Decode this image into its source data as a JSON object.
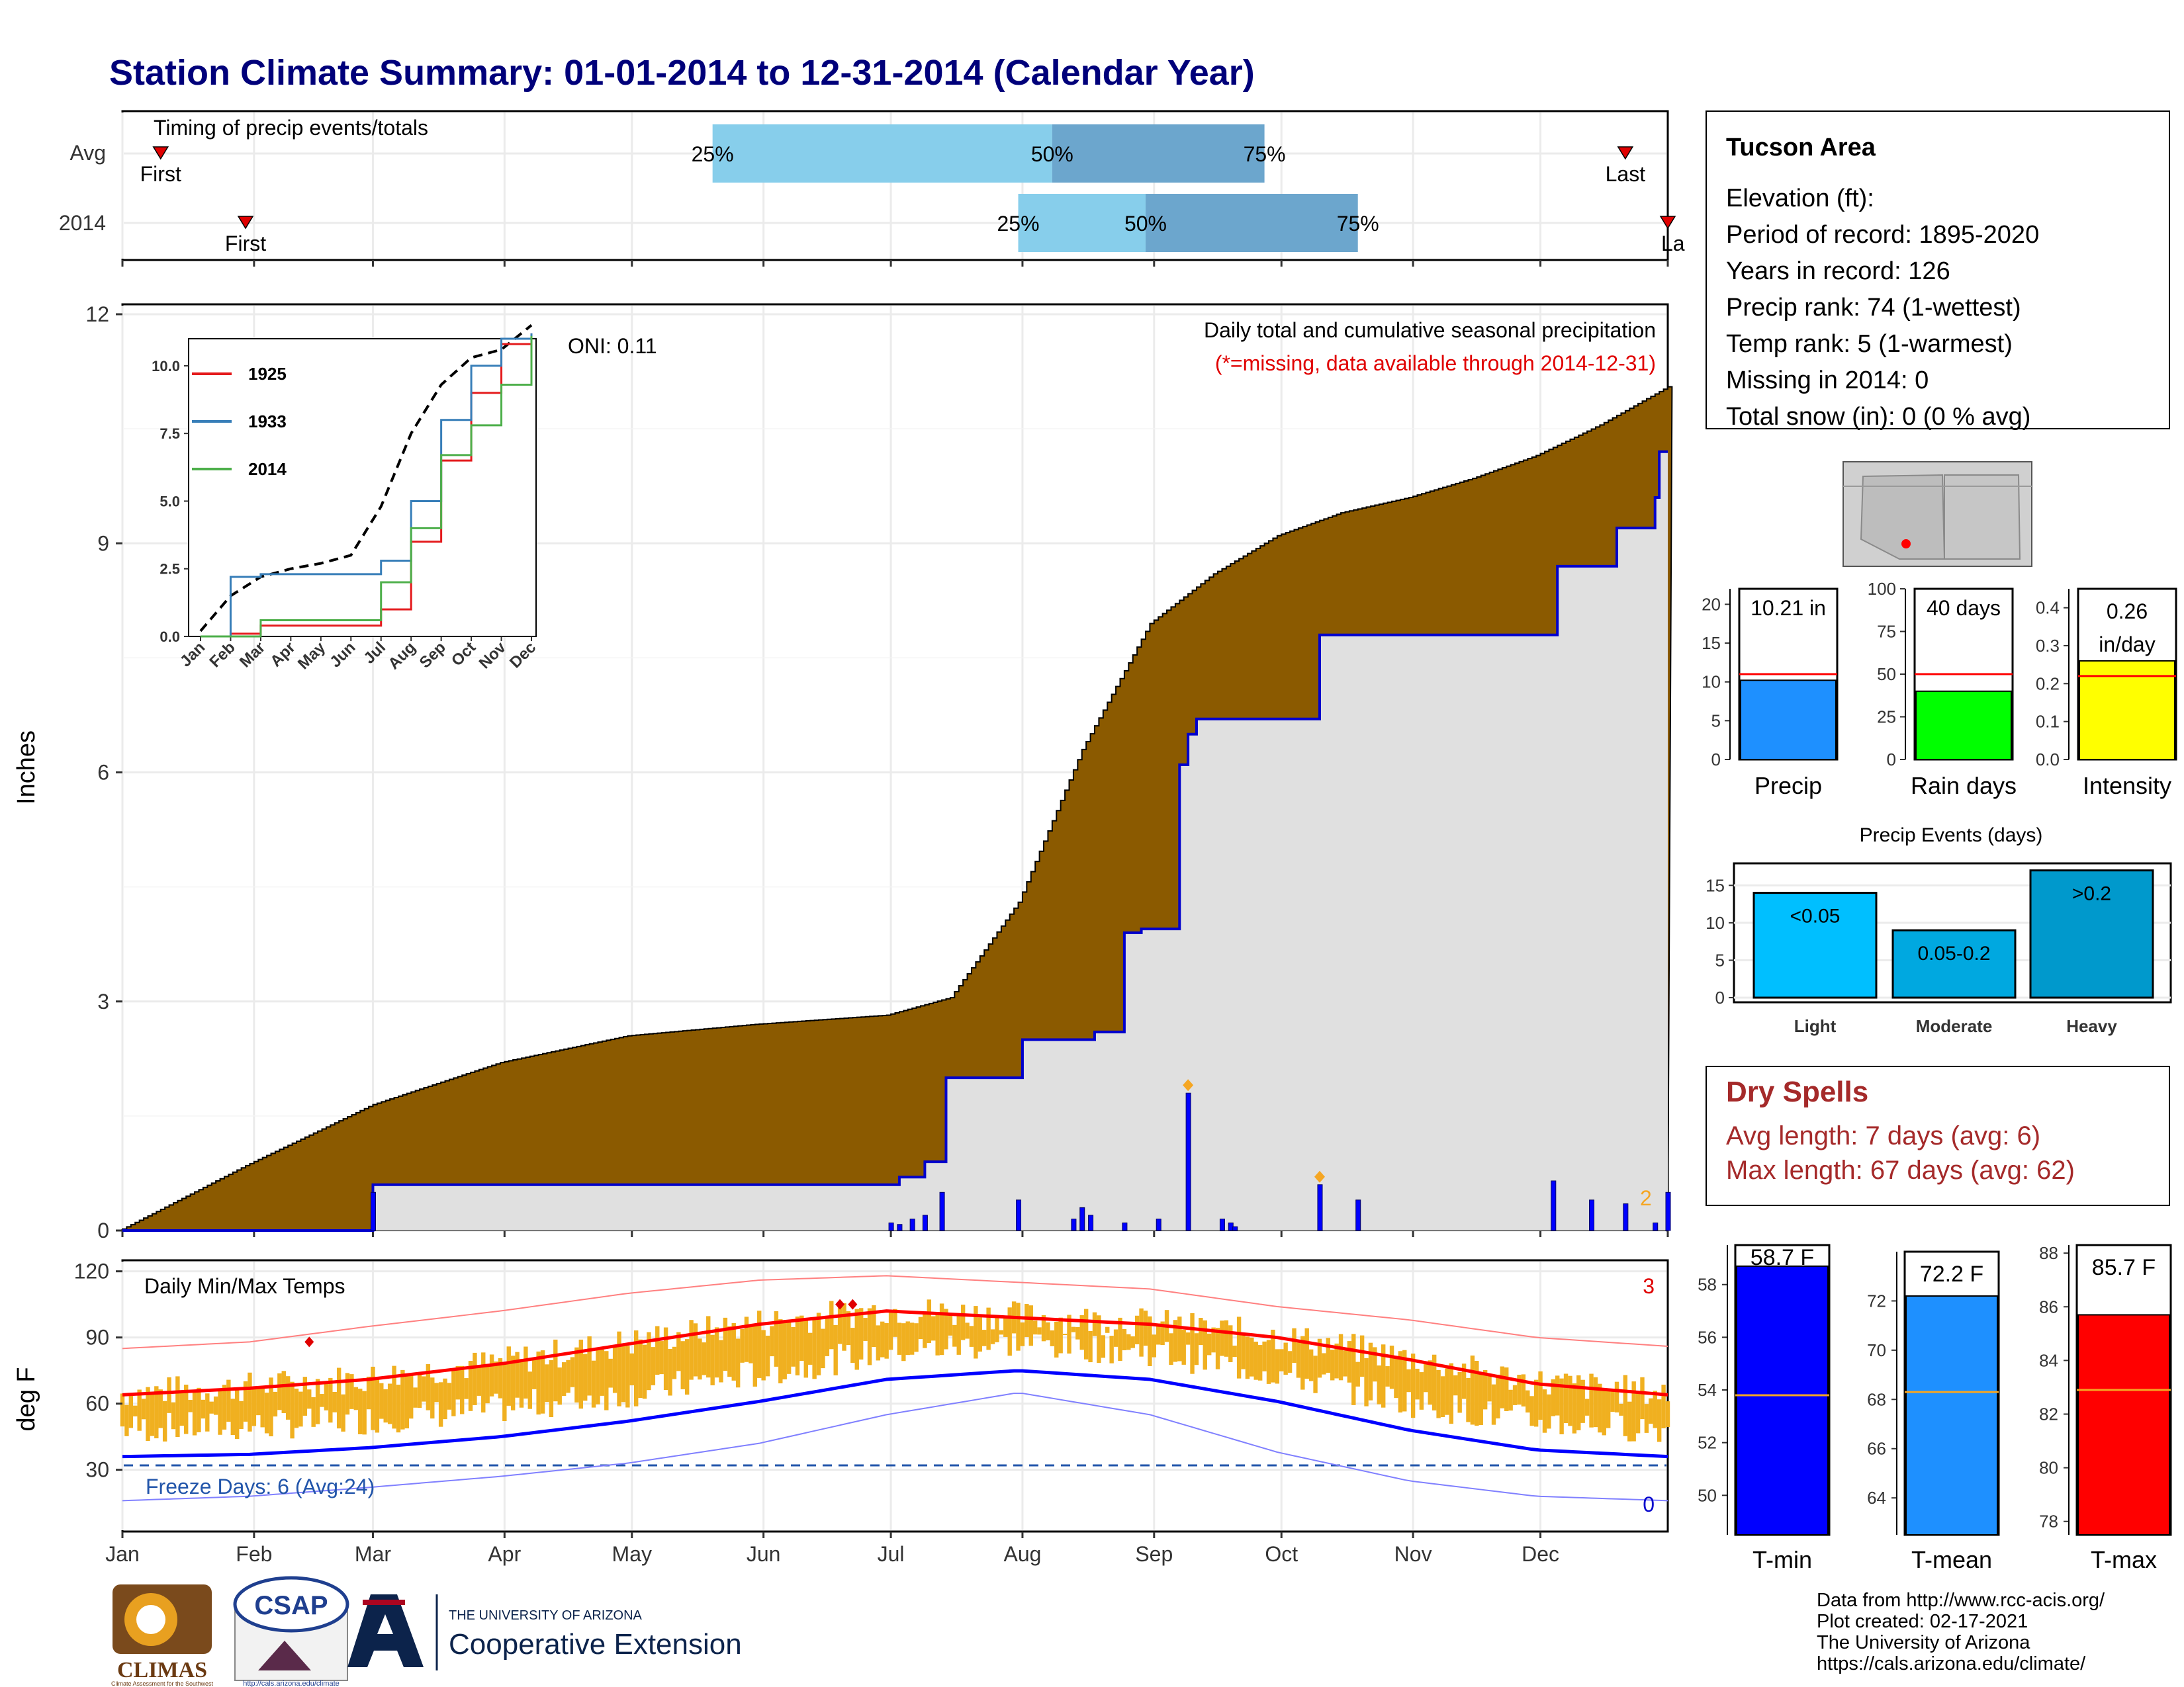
{
  "title": "Station Climate Summary: 01-01-2014 to 12-31-2014 (Calendar Year)",
  "timing": {
    "label": "Timing of precip events/totals",
    "rows": [
      "Avg",
      "2014"
    ],
    "first_label": "First",
    "last_label": "Last",
    "last_label_clipped": "La",
    "pct_labels": [
      "25%",
      "50%",
      "75%"
    ],
    "avg": {
      "first_doy": 10,
      "p25_doy": 140,
      "p50_doy": 220,
      "p75_doy": 270,
      "last_doy": 355
    },
    "y2014": {
      "first_doy": 30,
      "p25_doy": 212,
      "p50_doy": 242,
      "p75_doy": 292,
      "last_doy": 365
    }
  },
  "precip": {
    "ylabel": "Inches",
    "yticks": [
      "0",
      "3",
      "6",
      "9",
      "12"
    ],
    "note1": "Daily total and cumulative seasonal precipitation",
    "note2": "(*=missing, data available through 2014-12-31)",
    "oni": "ONI: 0.11",
    "corner_count": "2"
  },
  "inset": {
    "yticks": [
      "0.0",
      "2.5",
      "5.0",
      "7.5",
      "10.0"
    ],
    "months": [
      "Jan",
      "Feb",
      "Mar",
      "Apr",
      "May",
      "Jun",
      "Jul",
      "Aug",
      "Sep",
      "Oct",
      "Nov",
      "Dec"
    ],
    "legend": [
      {
        "name": "1925",
        "color": "#e41a1c"
      },
      {
        "name": "1933",
        "color": "#377eb8"
      },
      {
        "name": "2014",
        "color": "#4daf4a"
      }
    ]
  },
  "temps": {
    "ylabel": "deg F",
    "title": "Daily Min/Max Temps",
    "yticks": [
      "30",
      "60",
      "90",
      "120"
    ],
    "freeze": "Freeze Days: 6 (Avg:24)",
    "record_high_count": "3",
    "record_low_count": "0"
  },
  "months": [
    "Jan",
    "Feb",
    "Mar",
    "Apr",
    "May",
    "Jun",
    "Jul",
    "Aug",
    "Sep",
    "Oct",
    "Nov",
    "Dec"
  ],
  "info": {
    "station": "Tucson Area",
    "lines": [
      "Elevation (ft):",
      "Period of record: 1895-2020",
      "Years in record: 126",
      "Precip rank: 74 (1-wettest)",
      "Temp rank: 5 (1-warmest)",
      "Missing in 2014: 0",
      "Total snow (in): 0 (0 % avg)"
    ]
  },
  "mini_bars": [
    {
      "name": "Precip",
      "label": "10.21 in",
      "value": 10.21,
      "avg": 11.0,
      "ymax": 22,
      "ticks": [
        "0",
        "5",
        "10",
        "15",
        "20"
      ],
      "color": "#1e90ff"
    },
    {
      "name": "Rain days",
      "label": "40 days",
      "value": 40,
      "avg": 50,
      "ymax": 100,
      "ticks": [
        "0",
        "25",
        "50",
        "75",
        "100"
      ],
      "color": "#00ff00"
    },
    {
      "name": "Intensity",
      "label": "0.26 in/day",
      "label_parts": [
        "0.26",
        "in/day"
      ],
      "value": 0.26,
      "avg": 0.22,
      "ymax": 0.45,
      "ticks": [
        "0.0",
        "0.1",
        "0.2",
        "0.3",
        "0.4"
      ],
      "color": "#ffff00"
    }
  ],
  "events": {
    "title": "Precip Events (days)",
    "yticks": [
      "0",
      "5",
      "10",
      "15"
    ],
    "bars": [
      {
        "cat": "Light",
        "label": "<0.05",
        "value": 14,
        "color": "#00bfff"
      },
      {
        "cat": "Moderate",
        "label": "0.05-0.2",
        "value": 9,
        "color": "#00a8e0"
      },
      {
        "cat": "Heavy",
        "label": ">0.2",
        "value": 17,
        "color": "#0099cc"
      }
    ]
  },
  "dry_spells": {
    "title": "Dry Spells",
    "avg_line": "Avg length: 7 days (avg: 6)",
    "max_line": "Max length: 67 days (avg: 62)"
  },
  "temp_bars": [
    {
      "name": "T-min",
      "label": "58.7 F",
      "value": 58.7,
      "avg": 53.8,
      "ymin": 48.5,
      "ymax": 59.5,
      "ticks": [
        "50",
        "52",
        "54",
        "56",
        "58"
      ],
      "color": "#0000ff"
    },
    {
      "name": "T-mean",
      "label": "72.2 F",
      "value": 72.2,
      "avg": 68.3,
      "ymin": 62.5,
      "ymax": 74.0,
      "ticks": [
        "64",
        "66",
        "68",
        "70",
        "72"
      ],
      "color": "#1e90ff"
    },
    {
      "name": "T-max",
      "label": "85.7 F",
      "value": 85.7,
      "avg": 82.9,
      "ymin": 77.5,
      "ymax": 88.3,
      "ticks": [
        "78",
        "80",
        "82",
        "84",
        "86",
        "88"
      ],
      "color": "#ff0000"
    }
  ],
  "logos": {
    "climas": "CLIMAS",
    "climas_sub": "Climate Assessment for the Southwest",
    "csap": "CSAP",
    "csap_url": "http://cals.arizona.edu/climate",
    "ua_small": "THE UNIVERSITY OF ARIZONA",
    "ua_big": "Cooperative Extension"
  },
  "credits": [
    "Data from http://www.rcc-acis.org/",
    "Plot created: 02-17-2021",
    "The University of Arizona",
    "https://cals.arizona.edu/climate/"
  ],
  "chart_data": [
    {
      "type": "area",
      "title": "Daily total and cumulative seasonal precipitation",
      "ylabel": "Inches",
      "ylim": [
        0,
        12
      ],
      "series": [
        {
          "name": "",
          "x": [
            1,
            30,
            60,
            90,
            120,
            150,
            181,
            196,
            212,
            227,
            243,
            258,
            273,
            288,
            304,
            319,
            334,
            349,
            365
          ],
          "values": [
            0.02,
            0.85,
            1.65,
            2.2,
            2.55,
            2.7,
            2.82,
            3.05,
            4.3,
            6.3,
            7.95,
            8.6,
            9.1,
            9.4,
            9.6,
            9.85,
            10.15,
            10.55,
            11.05
          ]
        },
        {
          "name": "",
          "x": [
            1,
            59,
            60,
            181,
            184,
            190,
            195,
            212,
            213,
            228,
            230,
            237,
            241,
            250,
            252,
            254,
            257,
            283,
            285,
            313,
            320,
            337,
            339,
            345,
            353,
            362,
            363,
            365
          ],
          "values": [
            0,
            0,
            0.6,
            0.6,
            0.7,
            0.9,
            2.0,
            2.0,
            2.5,
            2.5,
            2.6,
            3.9,
            3.95,
            6.1,
            6.5,
            6.7,
            6.7,
            7.8,
            7.8,
            7.8,
            7.8,
            7.8,
            8.7,
            8.7,
            9.2,
            9.6,
            10.2,
            10.2
          ]
        }
      ],
      "daily_bars": {
        "x": [
          60,
          182,
          184,
          187,
          190,
          194,
          212,
          225,
          227,
          229,
          237,
          245,
          252,
          260,
          262,
          263,
          283,
          292,
          338,
          347,
          355,
          362,
          365
        ],
        "values": [
          0.5,
          0.1,
          0.08,
          0.15,
          0.2,
          0.5,
          0.4,
          0.15,
          0.3,
          0.2,
          0.1,
          0.15,
          1.8,
          0.15,
          0.1,
          0.05,
          0.6,
          0.4,
          0.65,
          0.4,
          0.35,
          0.1,
          0.5
        ]
      }
    },
    {
      "type": "line",
      "title": "",
      "ylim": [
        0,
        11
      ],
      "x_months": [
        "Jan",
        "Feb",
        "Mar",
        "Apr",
        "May",
        "Jun",
        "Jul",
        "Aug",
        "Sep",
        "Oct",
        "Nov",
        "Dec"
      ],
      "series": [
        {
          "name": "",
          "values": [
            0.2,
            1.5,
            2.2,
            2.5,
            2.7,
            3.0,
            4.8,
            7.5,
            9.3,
            10.3,
            10.6,
            11.5
          ]
        },
        {
          "name": "1925",
          "values": [
            0,
            0.1,
            0.4,
            0.4,
            0.4,
            0.4,
            1.0,
            3.5,
            6.5,
            9.0,
            10.8,
            11.2
          ]
        },
        {
          "name": "1933",
          "values": [
            0,
            2.2,
            2.3,
            2.3,
            2.3,
            2.3,
            2.8,
            5.0,
            8.0,
            10.0,
            11.0,
            11.2
          ]
        },
        {
          "name": "2014",
          "values": [
            0,
            0,
            0.6,
            0.6,
            0.6,
            0.6,
            2.0,
            4.0,
            6.7,
            7.8,
            9.3,
            11.1
          ]
        }
      ]
    },
    {
      "type": "bar",
      "title": "Daily Min/Max Temps",
      "ylabel": "deg F",
      "ylim": [
        0,
        120
      ],
      "series": [
        {
          "name": "",
          "x": [
            1,
            31,
            59,
            90,
            120,
            151,
            181,
            212,
            243,
            273,
            304,
            334,
            365
          ],
          "values": [
            64,
            67,
            71,
            78,
            87,
            96,
            102,
            99,
            96,
            90,
            80,
            69,
            64
          ]
        },
        {
          "name": "",
          "x": [
            1,
            31,
            59,
            90,
            120,
            151,
            181,
            212,
            243,
            273,
            304,
            334,
            365
          ],
          "values": [
            36,
            37,
            40,
            45,
            52,
            61,
            71,
            75,
            71,
            61,
            48,
            39,
            36
          ]
        },
        {
          "name": "",
          "x": [
            1,
            31,
            59,
            90,
            120,
            151,
            181,
            212,
            243,
            273,
            304,
            334,
            365
          ],
          "values": [
            85,
            88,
            95,
            102,
            110,
            116,
            118,
            115,
            112,
            104,
            98,
            90,
            86
          ]
        },
        {
          "name": "",
          "x": [
            1,
            31,
            59,
            90,
            120,
            151,
            181,
            212,
            243,
            273,
            304,
            334,
            365
          ],
          "values": [
            16,
            18,
            22,
            27,
            33,
            42,
            55,
            65,
            55,
            38,
            25,
            18,
            16
          ]
        }
      ],
      "freeze_line": 32
    },
    {
      "type": "bar",
      "categories": [
        "Precip",
        "Rain days",
        "Intensity"
      ],
      "values": [
        10.21,
        40,
        0.26
      ]
    },
    {
      "type": "bar",
      "title": "Precip Events (days)",
      "categories": [
        "Light",
        "Moderate",
        "Heavy"
      ],
      "values": [
        14,
        9,
        17
      ]
    },
    {
      "type": "bar",
      "categories": [
        "T-min",
        "T-mean",
        "T-max"
      ],
      "values": [
        58.7,
        72.2,
        85.7
      ]
    }
  ]
}
